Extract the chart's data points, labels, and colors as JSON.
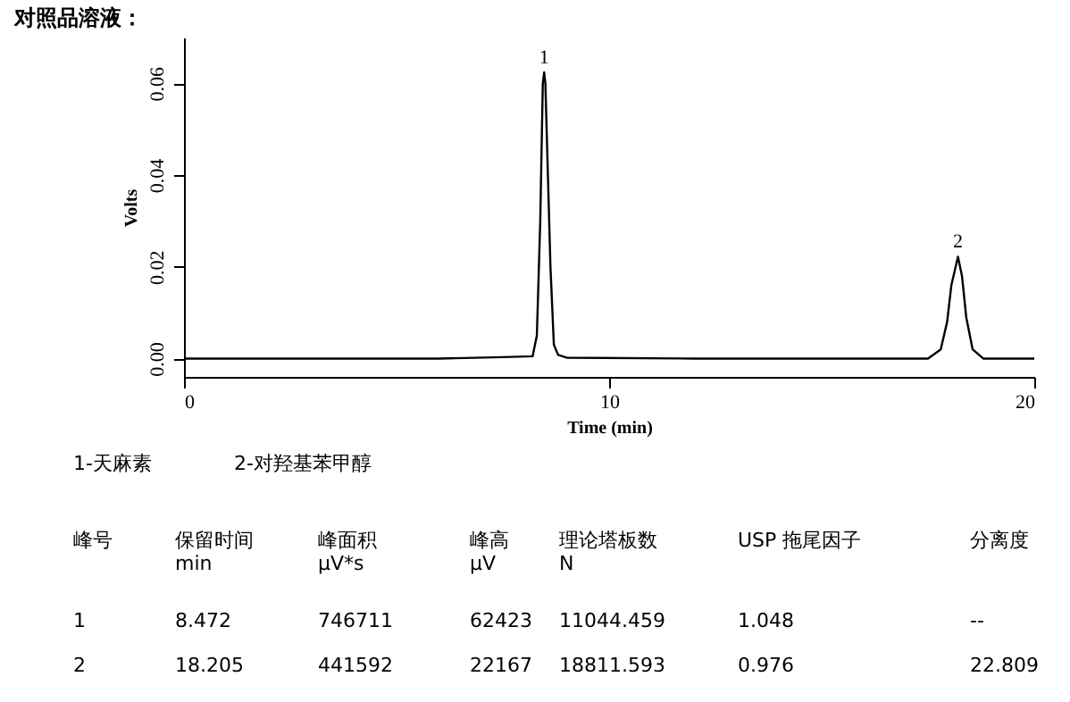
{
  "chart_data": [
    {
      "type": "line",
      "title": "对照品溶液：",
      "xlabel": "Time (min)",
      "ylabel": "Volts",
      "x": [
        0,
        6,
        7.5,
        8.2,
        8.3,
        8.38,
        8.44,
        8.472,
        8.5,
        8.56,
        8.62,
        8.7,
        8.8,
        9,
        12,
        17.5,
        17.8,
        17.95,
        18.05,
        18.205,
        18.3,
        18.4,
        18.55,
        18.8,
        20
      ],
      "series": [
        {
          "color": "#000000",
          "values": [
            0,
            0,
            0.0003,
            0.0005,
            0.005,
            0.03,
            0.06,
            0.0624,
            0.06,
            0.04,
            0.02,
            0.003,
            0.0008,
            0.0002,
            0,
            0,
            0.002,
            0.008,
            0.016,
            0.0222,
            0.018,
            0.009,
            0.002,
            0,
            0
          ]
        }
      ],
      "xlim": [
        0,
        20
      ],
      "xticks": [
        0,
        10,
        20
      ],
      "ylim": [
        -0.004,
        0.07
      ],
      "yticks": [
        {
          "value": 0,
          "label": "0.00"
        },
        {
          "value": 0.02,
          "label": "0.02"
        },
        {
          "value": 0.04,
          "label": "0.04"
        },
        {
          "value": 0.06,
          "label": "0.06"
        }
      ],
      "annotations": [
        {
          "text": "1",
          "x": 8.472,
          "y": 0.0624
        },
        {
          "text": "2",
          "x": 18.205,
          "y": 0.0222
        }
      ],
      "grid": false
    },
    {
      "type": "other",
      "annotations": [
        "1-天麻素",
        "2-对羟基苯甲醇",
        "峰号",
        "保留时间\nmin",
        "峰面积\nμV*s",
        "峰高\nμV",
        "理论塔板数\nN",
        "USP 拖尾因子",
        "分离度",
        "1",
        "8.472",
        "746711",
        "62423",
        "11044.459",
        "1.048",
        "--",
        "2",
        "18.205",
        "441592",
        "22167",
        "18811.593",
        "0.976",
        "22.809"
      ]
    }
  ]
}
